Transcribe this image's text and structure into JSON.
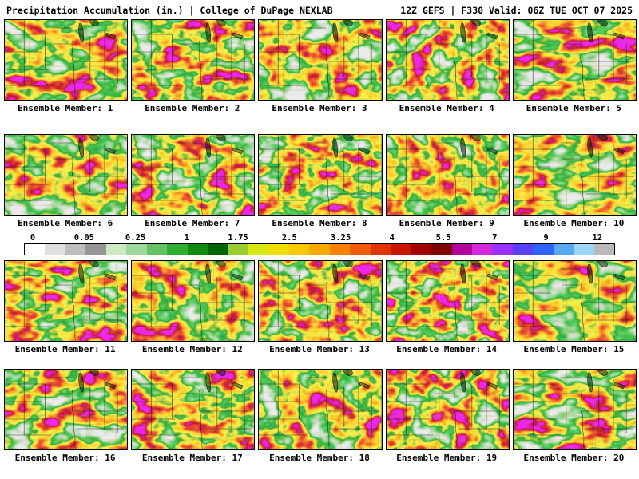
{
  "header": {
    "left": "Precipitation Accumulation (in.) | College of DuPage NEXLAB",
    "right": "12Z GEFS | F330 Valid: 06Z TUE OCT 07 2025"
  },
  "ensemble": {
    "per_row": 5,
    "labels": [
      "Ensemble Member: 1",
      "Ensemble Member: 2",
      "Ensemble Member: 3",
      "Ensemble Member: 4",
      "Ensemble Member: 5",
      "Ensemble Member: 6",
      "Ensemble Member: 7",
      "Ensemble Member: 8",
      "Ensemble Member: 9",
      "Ensemble Member: 10",
      "Ensemble Member: 11",
      "Ensemble Member: 12",
      "Ensemble Member: 13",
      "Ensemble Member: 14",
      "Ensemble Member: 15",
      "Ensemble Member: 16",
      "Ensemble Member: 17",
      "Ensemble Member: 18",
      "Ensemble Member: 19",
      "Ensemble Member: 20"
    ]
  },
  "colorbar": {
    "unit": "in.",
    "ticks": [
      "0",
      "0.05",
      "0.25",
      "1",
      "1.75",
      "2.5",
      "3.25",
      "4",
      "5.5",
      "7",
      "9",
      "12"
    ],
    "segments": [
      "#ffffff",
      "#e0e0e0",
      "#bdbdbd",
      "#969696",
      "#cdeac0",
      "#9ed89b",
      "#66c266",
      "#2fae2f",
      "#0f8c0f",
      "#006400",
      "#9acd32",
      "#d7e815",
      "#f0e000",
      "#fcc800",
      "#fcaa00",
      "#f98200",
      "#f25c00",
      "#e03500",
      "#c81400",
      "#a30000",
      "#7f0000",
      "#b4009b",
      "#d428dc",
      "#9b30ff",
      "#5a3ffb",
      "#2e64fb",
      "#58a8f8",
      "#9cd6f7",
      "#b9b9b9"
    ]
  },
  "map_palette": {
    "base_green": "#2e8b2e",
    "table_r": "0.82 0.55 0.10 0.02 0.92 0.98 0.90 0.55 0.85",
    "table_g": "0.82 0.72 0.62 0.42 0.88 0.62 0.10 0.01 0.02",
    "table_b": "0.82 0.50 0.12 0.05 0.08 0.02 0.04 0.02 0.85"
  }
}
